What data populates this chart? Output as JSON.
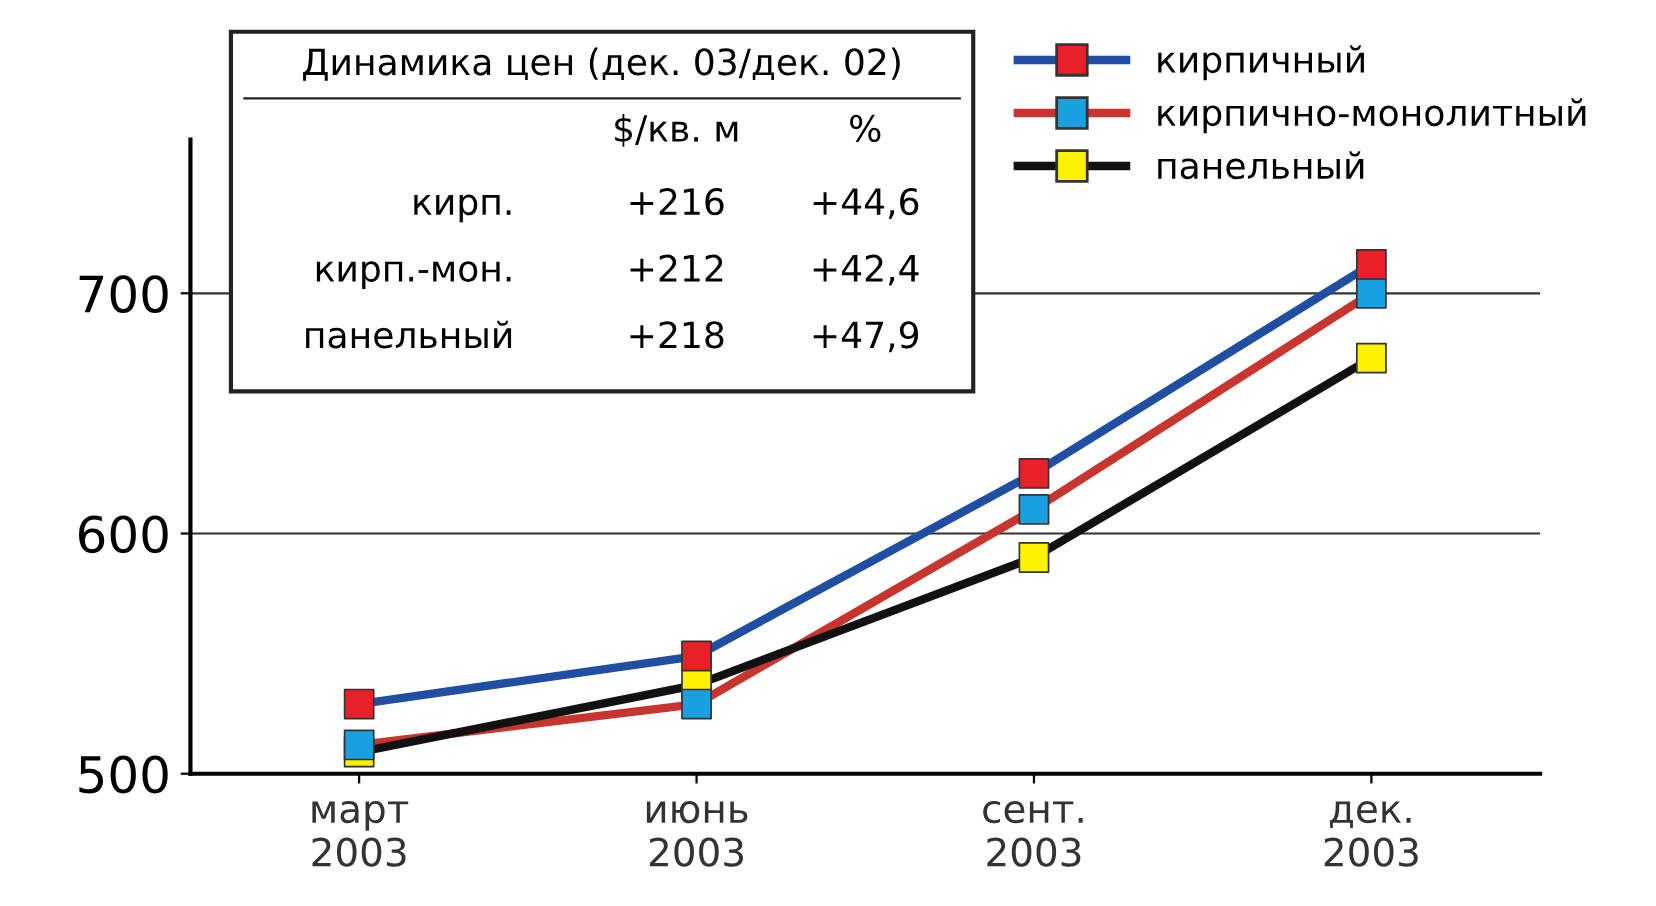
{
  "chart_data": {
    "type": "line",
    "categories": [
      "март\n2003",
      "июнь\n2003",
      "сент.\n2003",
      "дек.\n2003"
    ],
    "series": [
      {
        "name": "кирпичный",
        "color": "#1f4ea3",
        "colors": [
          "#e8202a",
          "#e8202a",
          "#e8202a",
          "#e8202a"
        ],
        "values": [
          529,
          549,
          625,
          712
        ]
      },
      {
        "name": "кирпично-монолитный",
        "color": "#c8352e",
        "colors": [
          "#19a0e0",
          "#19a0e0",
          "#19a0e0",
          "#19a0e0"
        ],
        "values": [
          512,
          529,
          610,
          700
        ]
      },
      {
        "name": "панельный",
        "color": "#111111",
        "colors": [
          "#fff200",
          "#fff200",
          "#fff200",
          "#fff200"
        ],
        "values": [
          509,
          537,
          590,
          673
        ]
      }
    ],
    "ylim": [
      500,
      764
    ],
    "yticks": [
      500,
      600,
      700
    ],
    "grid": "y",
    "legend": "top right",
    "marker": "square",
    "line_style": "solid",
    "annotations": [
      "Динамика цен (дек. 03/дек. 02)",
      "$/кв. м",
      "%",
      "кирп.",
      "+216",
      "+44,6",
      "кирп.-мон.",
      "+212",
      "+42,4",
      "панельный",
      "+218",
      "+47,9"
    ]
  }
}
